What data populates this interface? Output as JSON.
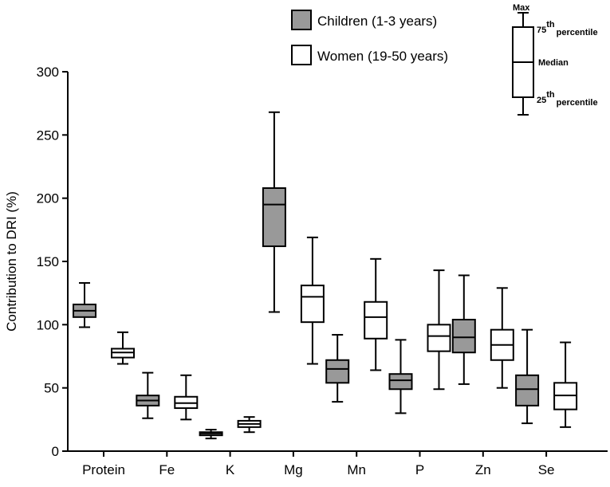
{
  "chart_data": {
    "type": "boxplot",
    "title": "",
    "xlabel": "",
    "ylabel": "Contribution to DRI (%)",
    "ylim": [
      0,
      300
    ],
    "yticks": [
      0,
      50,
      100,
      150,
      200,
      250,
      300
    ],
    "grid": false,
    "categories": [
      "Protein",
      "Fe",
      "K",
      "Mg",
      "Mn",
      "P",
      "Zn",
      "Se"
    ],
    "series": [
      {
        "name": "Children (1-3 years)",
        "color": "#999999",
        "boxes": [
          {
            "min": 98,
            "q1": 106,
            "median": 111,
            "q3": 116,
            "max": 133
          },
          {
            "min": 26,
            "q1": 36,
            "median": 40,
            "q3": 44,
            "max": 62
          },
          {
            "min": 10,
            "q1": 12.5,
            "median": 14,
            "q3": 15,
            "max": 17
          },
          {
            "min": 110,
            "q1": 162,
            "median": 195,
            "q3": 208,
            "max": 268
          },
          {
            "min": 39,
            "q1": 54,
            "median": 65,
            "q3": 72,
            "max": 92
          },
          {
            "min": 30,
            "q1": 49,
            "median": 56,
            "q3": 61,
            "max": 88
          },
          {
            "min": 53,
            "q1": 78,
            "median": 90,
            "q3": 104,
            "max": 139
          },
          {
            "min": 22,
            "q1": 36,
            "median": 49,
            "q3": 60,
            "max": 96
          }
        ]
      },
      {
        "name": "Women (19-50 years)",
        "color": "#ffffff",
        "boxes": [
          {
            "min": 69,
            "q1": 74,
            "median": 78,
            "q3": 81,
            "max": 94
          },
          {
            "min": 25,
            "q1": 34,
            "median": 38,
            "q3": 43,
            "max": 60
          },
          {
            "min": 15,
            "q1": 19,
            "median": 21.5,
            "q3": 24,
            "max": 27
          },
          {
            "min": 69,
            "q1": 102,
            "median": 122,
            "q3": 131,
            "max": 169
          },
          {
            "min": 64,
            "q1": 89,
            "median": 106,
            "q3": 118,
            "max": 152
          },
          {
            "min": 49,
            "q1": 79,
            "median": 91,
            "q3": 100,
            "max": 143
          },
          {
            "min": 50,
            "q1": 72,
            "median": 84,
            "q3": 96,
            "max": 129
          },
          {
            "min": 19,
            "q1": 33,
            "median": 44,
            "q3": 54,
            "max": 86
          }
        ]
      }
    ],
    "legend": {
      "position": "top-center",
      "entries": [
        "Children (1-3 years)",
        "Women (19-50 years)"
      ]
    },
    "key": {
      "max": "Max",
      "p75": "75",
      "p75_sup": "th",
      "p75_suffix": "percentile",
      "median": "Median",
      "p25": "25",
      "p25_sup": "th",
      "p25_suffix": "percentile"
    }
  }
}
